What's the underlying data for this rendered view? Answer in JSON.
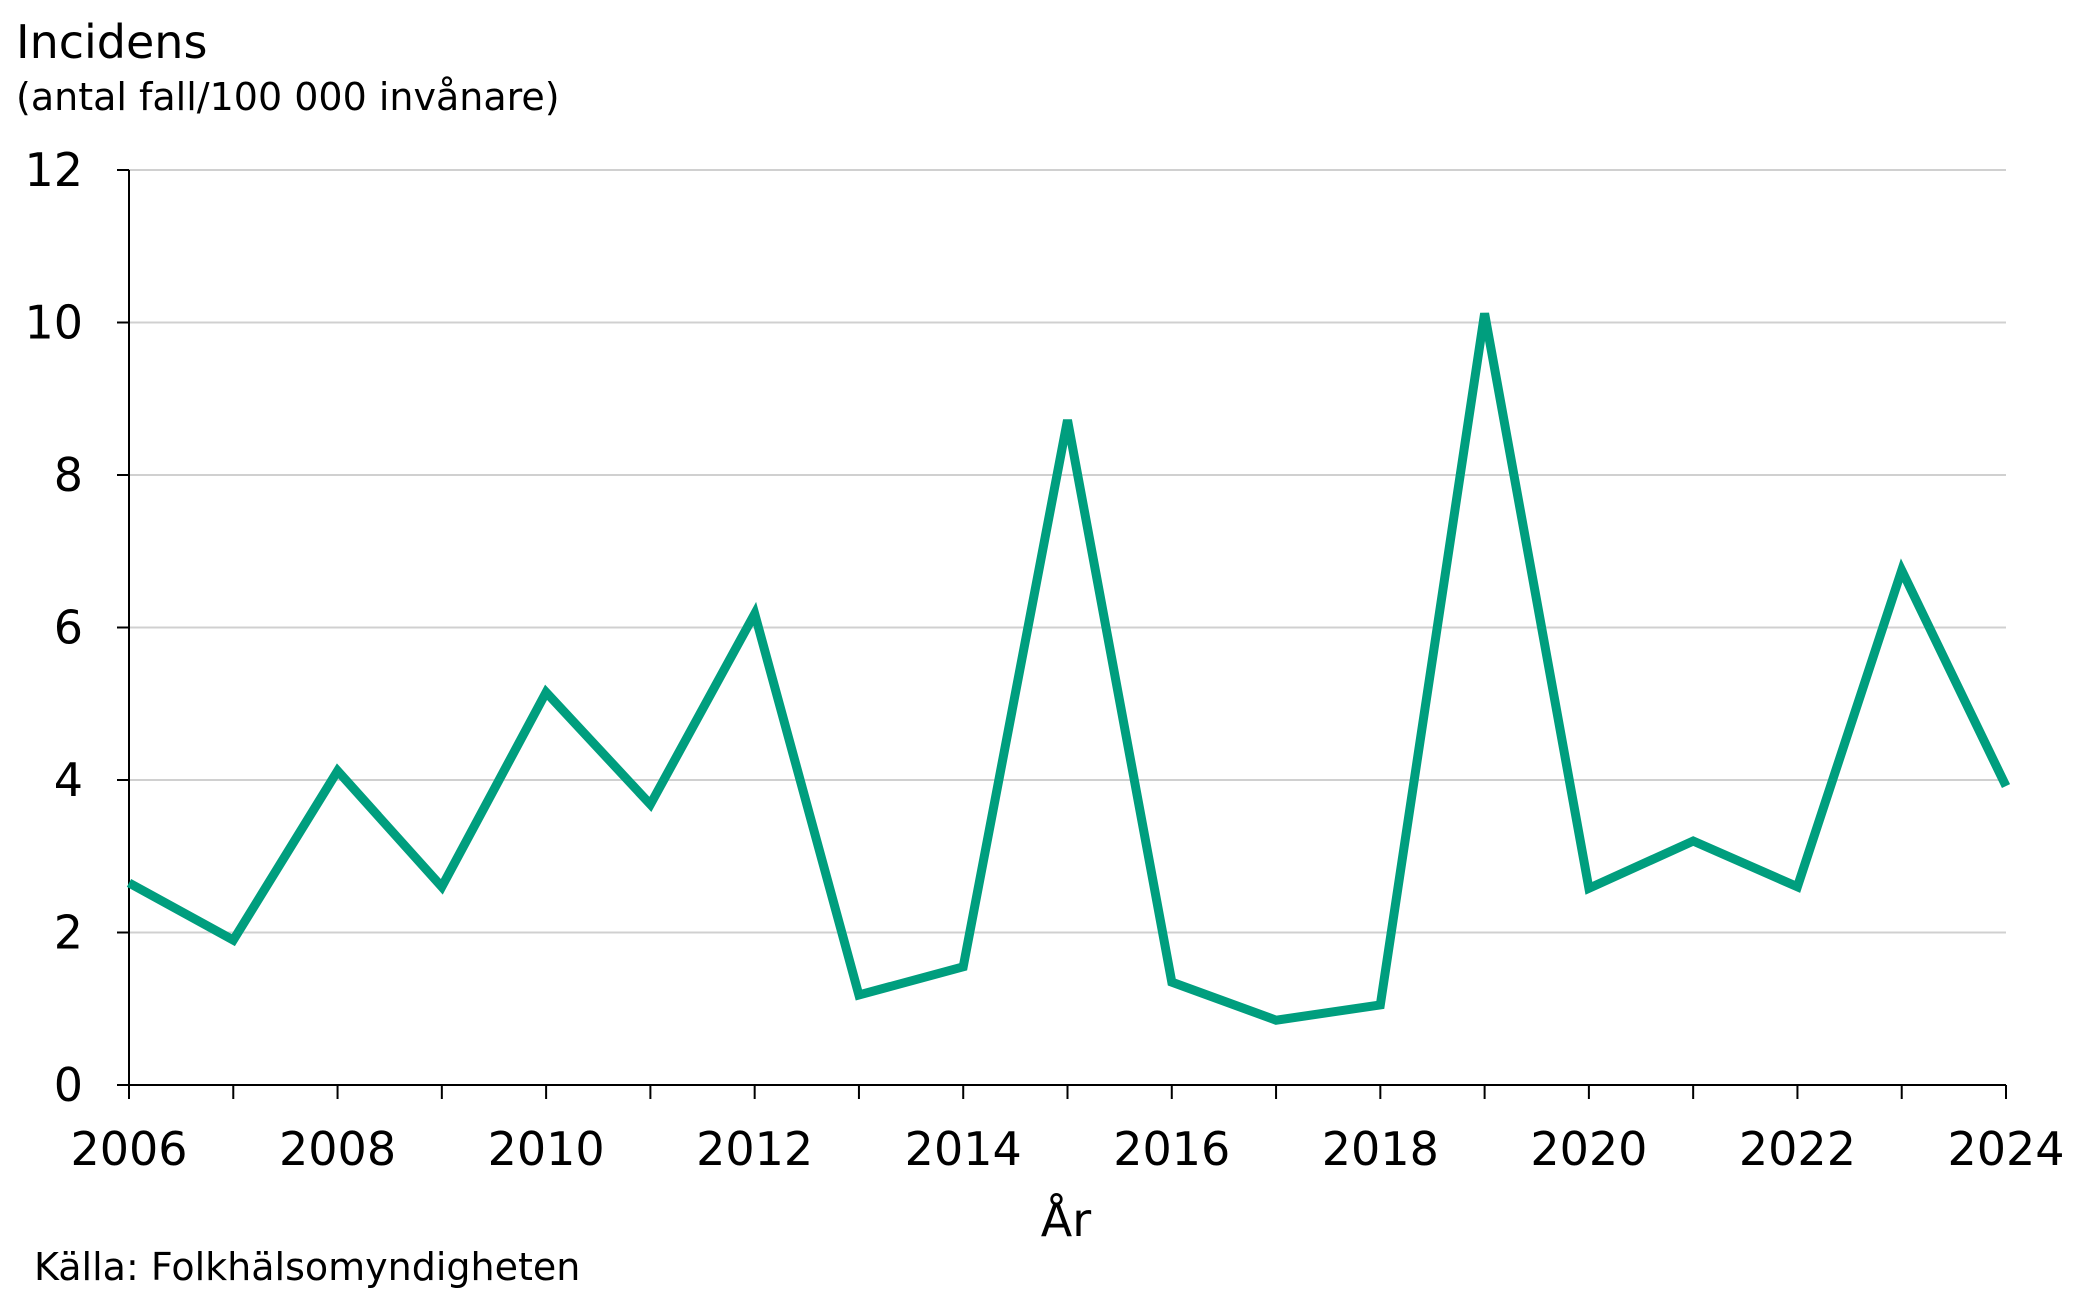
{
  "chart_data": {
    "type": "line",
    "ylabel": "Incidens",
    "ylabel_unit": "(antal fall/100 000 invånare)",
    "xlabel": "År",
    "source": "Källa: Folkhälsomyndigheten",
    "x": [
      2006,
      2007,
      2008,
      2009,
      2010,
      2011,
      2012,
      2013,
      2014,
      2015,
      2016,
      2017,
      2018,
      2019,
      2020,
      2021,
      2022,
      2023,
      2024
    ],
    "series": [
      {
        "values": [
          2.65,
          1.9,
          4.12,
          2.6,
          5.15,
          3.68,
          6.18,
          1.18,
          1.55,
          8.72,
          1.35,
          0.85,
          1.05,
          10.12,
          2.58,
          3.2,
          2.6,
          6.75,
          3.92
        ],
        "color": "#009E7E"
      }
    ],
    "xticks": [
      "2006",
      "2008",
      "2010",
      "2012",
      "2014",
      "2016",
      "2018",
      "2020",
      "2022",
      "2024"
    ],
    "yticks": [
      "0",
      "2",
      "4",
      "6",
      "8",
      "10",
      "12"
    ],
    "xlim": [
      2006,
      2024
    ],
    "ylim": [
      0,
      12
    ],
    "grid": "horizontal"
  }
}
